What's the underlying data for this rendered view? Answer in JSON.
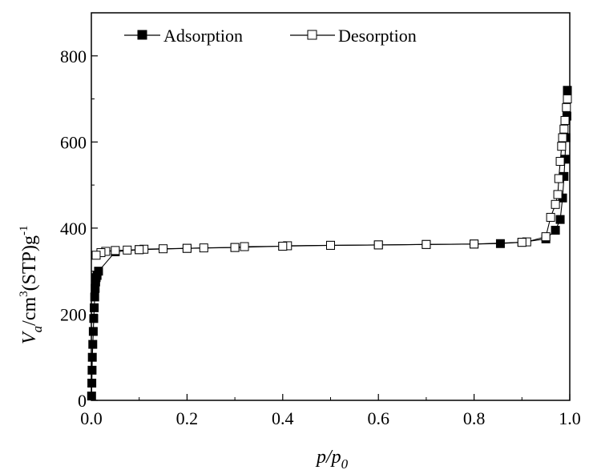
{
  "chart_data": {
    "type": "scatter",
    "xlabel": {
      "main": "p/p",
      "sub": "0"
    },
    "ylabel": {
      "v": "V",
      "sub_a": "a",
      "mid": "/cm",
      "sup3": "3",
      "stp": "(STP)g",
      "supm1": "-1"
    },
    "xlim": [
      0,
      1.0
    ],
    "ylim": [
      0,
      900
    ],
    "xticks": [
      "0.0",
      "0.2",
      "0.4",
      "0.6",
      "0.8",
      "1.0"
    ],
    "yticks": [
      "0",
      "200",
      "400",
      "600",
      "800"
    ],
    "legend": {
      "position": "top-left",
      "adsorption": "Adsorption",
      "desorption": "Desorption"
    },
    "grid": false,
    "series": [
      {
        "name": "Adsorption",
        "marker": "filled-square",
        "x": [
          0.0005,
          0.001,
          0.0015,
          0.002,
          0.003,
          0.004,
          0.005,
          0.006,
          0.007,
          0.008,
          0.009,
          0.01,
          0.012,
          0.015,
          0.05,
          0.1,
          0.2,
          0.3,
          0.4,
          0.5,
          0.6,
          0.7,
          0.8,
          0.855,
          0.9,
          0.95,
          0.97,
          0.98,
          0.985,
          0.988,
          0.99,
          0.992,
          0.994,
          0.995
        ],
        "y": [
          10,
          40,
          70,
          100,
          130,
          160,
          190,
          215,
          240,
          260,
          275,
          285,
          290,
          300,
          345,
          350,
          353,
          355,
          358,
          360,
          361,
          362,
          363,
          364,
          367,
          375,
          395,
          420,
          470,
          520,
          560,
          610,
          660,
          720
        ]
      },
      {
        "name": "Desorption",
        "marker": "open-square",
        "x": [
          0.995,
          0.993,
          0.99,
          0.988,
          0.985,
          0.983,
          0.98,
          0.977,
          0.975,
          0.97,
          0.96,
          0.95,
          0.91,
          0.9,
          0.8,
          0.7,
          0.6,
          0.5,
          0.41,
          0.4,
          0.32,
          0.3,
          0.235,
          0.2,
          0.15,
          0.11,
          0.1,
          0.075,
          0.05,
          0.03,
          0.02,
          0.01
        ],
        "y": [
          700,
          680,
          650,
          630,
          610,
          590,
          555,
          515,
          478,
          455,
          425,
          380,
          368,
          367,
          363,
          362,
          361,
          360,
          359,
          358,
          357,
          355,
          354,
          353,
          352,
          351,
          350,
          349,
          348,
          346,
          343,
          337
        ]
      }
    ]
  }
}
